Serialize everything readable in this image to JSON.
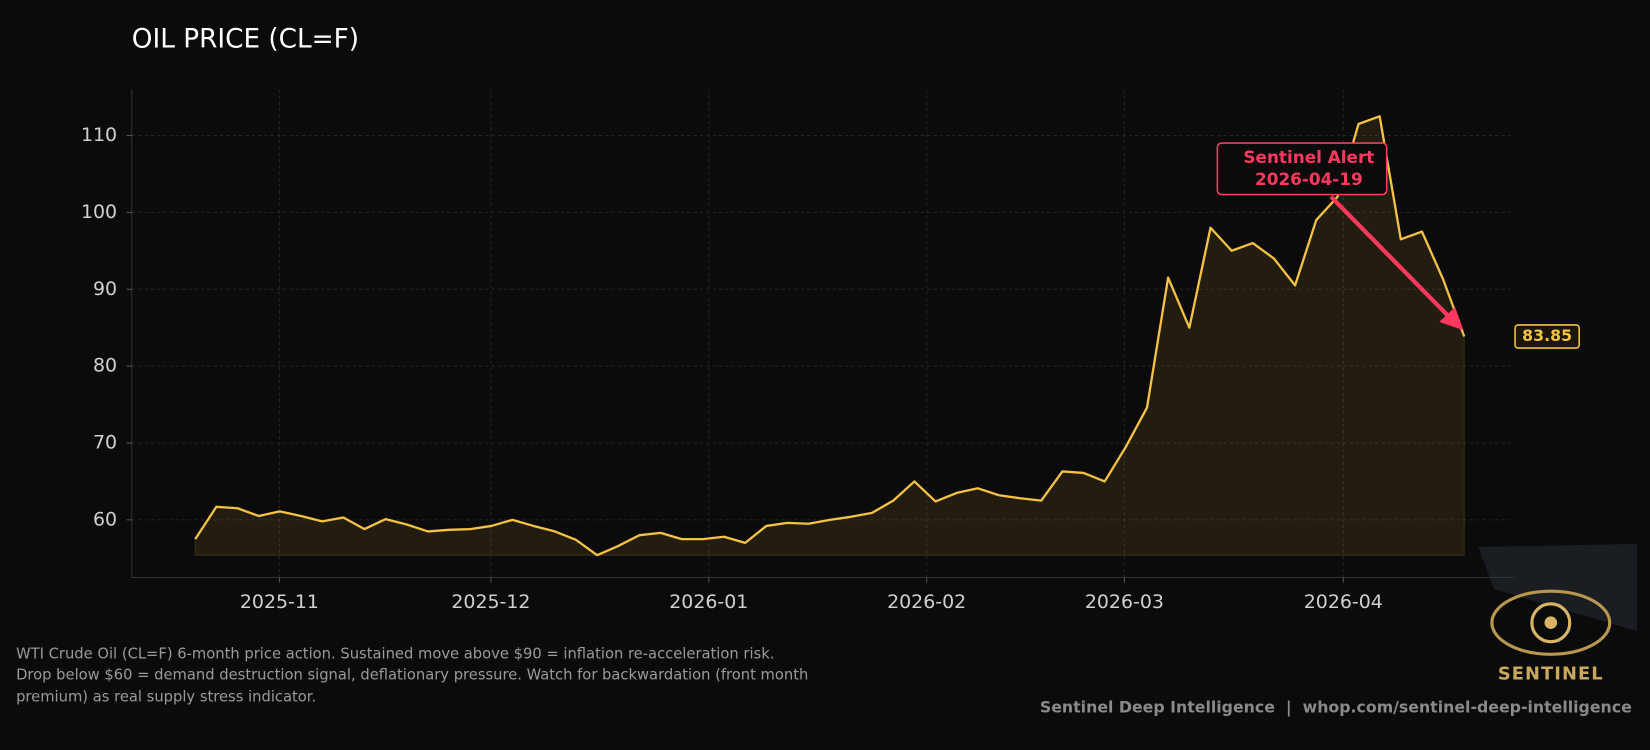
{
  "chart_data": {
    "type": "line",
    "title": "OIL PRICE (CL=F)",
    "series": [
      {
        "name": "CL=F",
        "color": "#f5c242",
        "values": [
          57.5,
          61.7,
          61.5,
          60.5,
          61.1,
          60.5,
          59.8,
          60.3,
          58.8,
          60.1,
          59.4,
          58.5,
          58.7,
          58.8,
          59.2,
          60.0,
          59.2,
          58.5,
          57.4,
          55.4,
          56.6,
          58.0,
          58.3,
          57.5,
          57.5,
          57.8,
          57.0,
          59.2,
          59.6,
          59.5,
          60.0,
          60.4,
          60.9,
          62.5,
          65.0,
          62.4,
          63.5,
          64.1,
          63.2,
          62.8,
          62.5,
          66.3,
          66.1,
          65.0,
          69.5,
          74.6,
          91.5,
          85.0,
          98.0,
          95.0,
          96.0,
          94.0,
          90.5,
          99.0,
          102.0,
          111.5,
          112.5,
          96.5,
          97.5,
          91.3,
          83.85
        ]
      }
    ],
    "xlim": [
      -3,
      62.4
    ],
    "xticks": [
      {
        "value": 3.98,
        "label": "2025-11"
      },
      {
        "value": 13.98,
        "label": "2025-12"
      },
      {
        "value": 24.28,
        "label": "2026-01"
      },
      {
        "value": 34.58,
        "label": "2026-02"
      },
      {
        "value": 43.93,
        "label": "2026-03"
      },
      {
        "value": 54.28,
        "label": "2026-04"
      }
    ],
    "ylim": [
      52.5,
      116
    ],
    "yticks": [
      60,
      70,
      80,
      90,
      100,
      110
    ],
    "grid": true,
    "annotation": {
      "label": "Sentinel Alert",
      "date": "2026-04-19",
      "color": "#ff3860"
    }
  },
  "caption": [
    "WTI Crude Oil (CL=F) 6-month price action. Sustained move above $90 = inflation re-acceleration risk.",
    "Drop below $60 = demand destruction signal, deflationary pressure. Watch for backwardation (front month",
    "premium) as real supply stress indicator."
  ],
  "footer": "Sentinel Deep Intelligence  |  whop.com/sentinel-deep-intelligence",
  "logo": "SENTINEL"
}
